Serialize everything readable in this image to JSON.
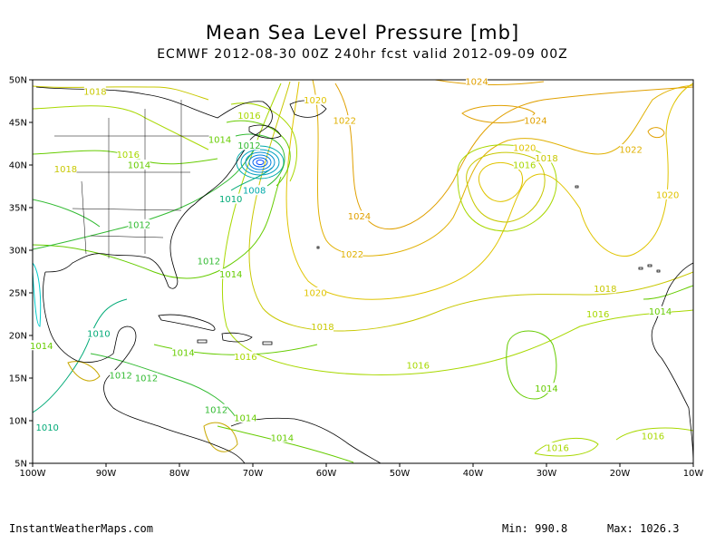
{
  "header": {
    "title": "Mean Sea Level Pressure [mb]",
    "subtitle": "ECMWF 2012-08-30 00Z 240hr fcst valid 2012-09-09 00Z"
  },
  "map": {
    "lat_labels": [
      "50N",
      "45N",
      "40N",
      "35N",
      "30N",
      "25N",
      "20N",
      "15N",
      "10N",
      "5N"
    ],
    "lon_labels": [
      "100W",
      "90W",
      "80W",
      "70W",
      "60W",
      "50W",
      "40W",
      "30W",
      "20W",
      "10W"
    ],
    "contour_labels": [
      {
        "text": "1018",
        "lon": -91.5,
        "lat": 48.6,
        "color": "#c8c800"
      },
      {
        "text": "1016",
        "lon": -87,
        "lat": 41.2,
        "color": "#a8d800"
      },
      {
        "text": "1014",
        "lon": -85.5,
        "lat": 40.0,
        "color": "#66cc00"
      },
      {
        "text": "1018",
        "lon": -95.5,
        "lat": 39.5,
        "color": "#c8c800"
      },
      {
        "text": "1012",
        "lon": -85.5,
        "lat": 33.0,
        "color": "#33bb33"
      },
      {
        "text": "1016",
        "lon": -70.5,
        "lat": 45.8,
        "color": "#a8d800"
      },
      {
        "text": "1014",
        "lon": -74.5,
        "lat": 43.0,
        "color": "#66cc00"
      },
      {
        "text": "1012",
        "lon": -70.5,
        "lat": 42.3,
        "color": "#33bb33"
      },
      {
        "text": "1008",
        "lon": -69.8,
        "lat": 37.0,
        "color": "#00aaaa"
      },
      {
        "text": "1010",
        "lon": -73.0,
        "lat": 36.0,
        "color": "#00aa77"
      },
      {
        "text": "1020",
        "lon": -61.5,
        "lat": 47.6,
        "color": "#e0c400"
      },
      {
        "text": "1022",
        "lon": -57.5,
        "lat": 45.2,
        "color": "#e0b000"
      },
      {
        "text": "1024",
        "lon": -39.5,
        "lat": 49.8,
        "color": "#e0a000"
      },
      {
        "text": "1024",
        "lon": -31.5,
        "lat": 45.2,
        "color": "#e0a000"
      },
      {
        "text": "1022",
        "lon": -18.5,
        "lat": 41.8,
        "color": "#e0b000"
      },
      {
        "text": "1020",
        "lon": -33.0,
        "lat": 42.0,
        "color": "#e0c400"
      },
      {
        "text": "1018",
        "lon": -30.0,
        "lat": 40.8,
        "color": "#c8c800"
      },
      {
        "text": "1016",
        "lon": -33.0,
        "lat": 40.0,
        "color": "#a8d800"
      },
      {
        "text": "1020",
        "lon": -13.5,
        "lat": 36.5,
        "color": "#e0c400"
      },
      {
        "text": "1024",
        "lon": -55.5,
        "lat": 34.0,
        "color": "#e0a000"
      },
      {
        "text": "1022",
        "lon": -56.5,
        "lat": 29.5,
        "color": "#e0b000"
      },
      {
        "text": "1020",
        "lon": -61.5,
        "lat": 25.0,
        "color": "#e0c400"
      },
      {
        "text": "1018",
        "lon": -60.5,
        "lat": 21.0,
        "color": "#c8c800"
      },
      {
        "text": "1016",
        "lon": -47.5,
        "lat": 16.5,
        "color": "#a8d800"
      },
      {
        "text": "1018",
        "lon": -22.0,
        "lat": 25.5,
        "color": "#c8c800"
      },
      {
        "text": "1016",
        "lon": -23.0,
        "lat": 22.5,
        "color": "#a8d800"
      },
      {
        "text": "1014",
        "lon": -30.0,
        "lat": 13.8,
        "color": "#66cc00"
      },
      {
        "text": "1014",
        "lon": -14.5,
        "lat": 22.8,
        "color": "#66cc00"
      },
      {
        "text": "1016",
        "lon": -28.5,
        "lat": 6.8,
        "color": "#a8d800"
      },
      {
        "text": "1016",
        "lon": -15.5,
        "lat": 8.2,
        "color": "#a8d800"
      },
      {
        "text": "1012",
        "lon": -76.0,
        "lat": 28.7,
        "color": "#33bb33"
      },
      {
        "text": "1014",
        "lon": -73.0,
        "lat": 27.2,
        "color": "#66cc00"
      },
      {
        "text": "1014",
        "lon": -79.5,
        "lat": 18.0,
        "color": "#66cc00"
      },
      {
        "text": "1016",
        "lon": -71.0,
        "lat": 17.5,
        "color": "#a8d800"
      },
      {
        "text": "1010",
        "lon": -91.0,
        "lat": 20.2,
        "color": "#00aa77"
      },
      {
        "text": "1014",
        "lon": -98.8,
        "lat": 18.8,
        "color": "#66cc00"
      },
      {
        "text": "1012",
        "lon": -88.0,
        "lat": 15.3,
        "color": "#33bb33"
      },
      {
        "text": "1012",
        "lon": -84.5,
        "lat": 15.0,
        "color": "#33bb33"
      },
      {
        "text": "1010",
        "lon": -98.0,
        "lat": 9.2,
        "color": "#00aa77"
      },
      {
        "text": "1012",
        "lon": -75.0,
        "lat": 11.3,
        "color": "#33bb33"
      },
      {
        "text": "1014",
        "lon": -71.0,
        "lat": 10.3,
        "color": "#66cc00"
      },
      {
        "text": "1014",
        "lon": -66.0,
        "lat": 8.0,
        "color": "#66cc00"
      }
    ],
    "range": {
      "lon_min": -100,
      "lon_max": -10,
      "lat_min": 5,
      "lat_max": 50
    }
  },
  "footer": {
    "credit": "InstantWeatherMaps.com",
    "min_label": "Min:  990.8",
    "max_label": "Max: 1026.3"
  }
}
